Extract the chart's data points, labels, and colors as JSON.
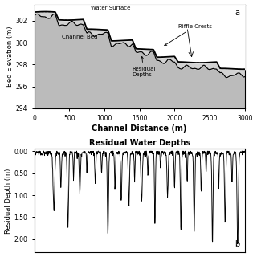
{
  "top_plot": {
    "xlabel": "Channel Distance (m)",
    "ylabel": "Bed Elevation (m)",
    "xlim": [
      0,
      3000
    ],
    "ylim": [
      294,
      303.5
    ],
    "yticks": [
      294,
      296,
      298,
      300,
      302
    ],
    "xticks": [
      0,
      500,
      1000,
      1500,
      2000,
      2500,
      3000
    ],
    "label_a": "a"
  },
  "bottom_plot": {
    "title": "Residual Water Depths",
    "ylabel": "Residual Depth (m)",
    "xlim": [
      0,
      3000
    ],
    "ylim": [
      2.3,
      -0.05
    ],
    "yticks": [
      0.0,
      0.5,
      1.0,
      1.5,
      2.0
    ],
    "label_b": "b"
  },
  "bg_color": "#e8e8e8",
  "line_color": "#111111"
}
